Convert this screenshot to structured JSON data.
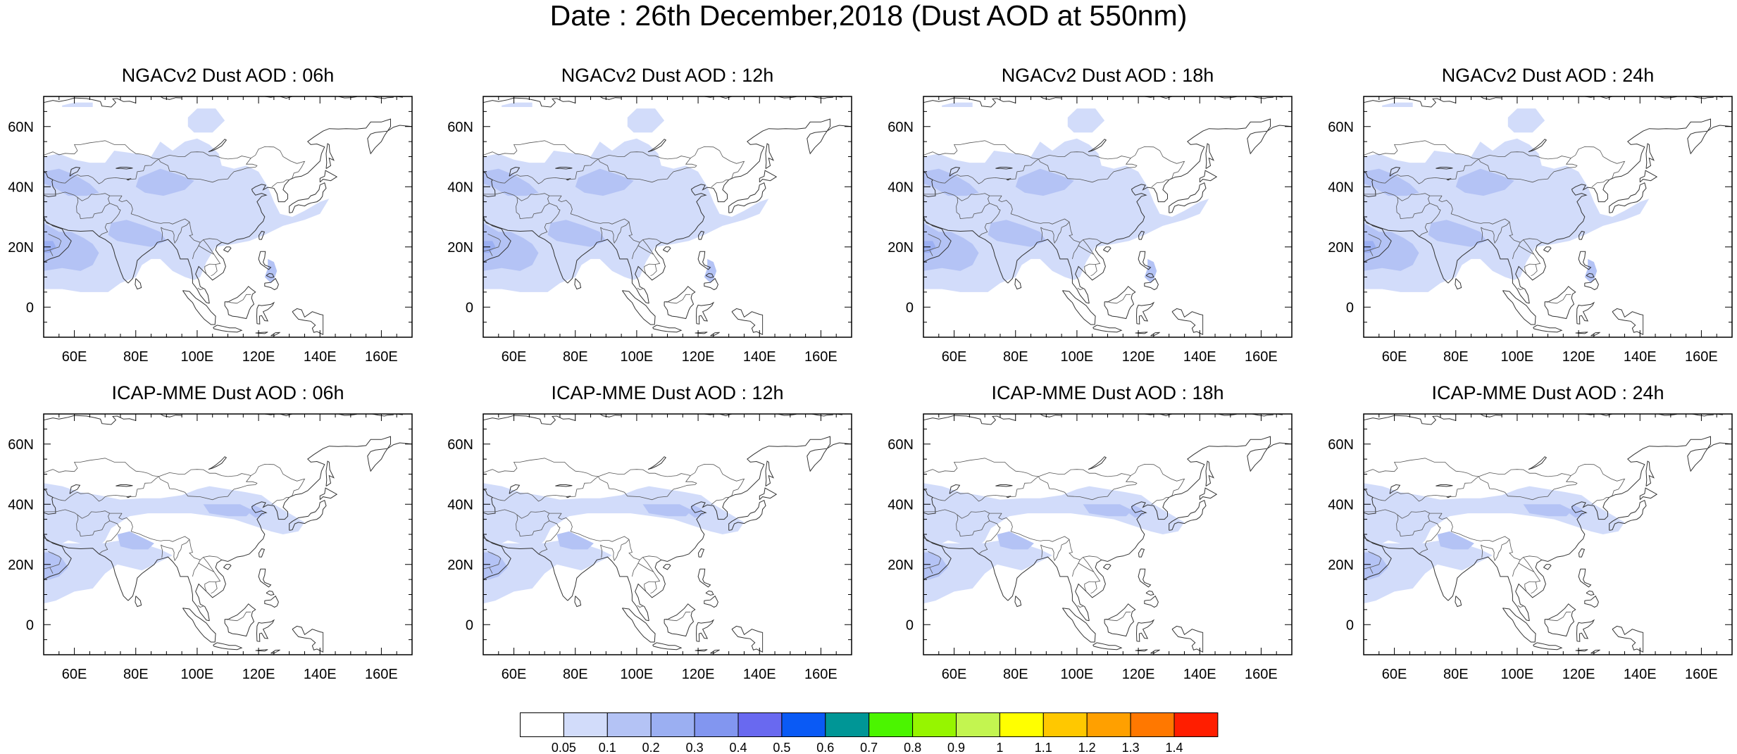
{
  "title": "Date : 26th December,2018 (Dust AOD at 550nm)",
  "axes": {
    "lon_ticks": [
      "60E",
      "80E",
      "100E",
      "120E",
      "140E",
      "160E"
    ],
    "lat_ticks": [
      "60N",
      "40N",
      "20N",
      "0"
    ],
    "lon_range": [
      50,
      170
    ],
    "lat_range": [
      -10,
      70
    ]
  },
  "panels": [
    {
      "title": "NGACv2 Dust AOD : 06h",
      "model": "NGACv2"
    },
    {
      "title": "NGACv2 Dust AOD : 12h",
      "model": "NGACv2"
    },
    {
      "title": "NGACv2 Dust AOD : 18h",
      "model": "NGACv2"
    },
    {
      "title": "NGACv2 Dust AOD : 24h",
      "model": "NGACv2"
    },
    {
      "title": "ICAP-MME Dust AOD : 06h",
      "model": "ICAP-MME"
    },
    {
      "title": "ICAP-MME Dust AOD : 12h",
      "model": "ICAP-MME"
    },
    {
      "title": "ICAP-MME Dust AOD : 18h",
      "model": "ICAP-MME"
    },
    {
      "title": "ICAP-MME Dust AOD : 24h",
      "model": "ICAP-MME"
    }
  ],
  "colorbar": {
    "labels": [
      "0.05",
      "0.1",
      "0.2",
      "0.3",
      "0.4",
      "0.5",
      "0.6",
      "0.7",
      "0.8",
      "0.9",
      "1",
      "1.1",
      "1.2",
      "1.3",
      "1.4"
    ],
    "colors": [
      "#ffffff",
      "#d2dcfa",
      "#b4c3f5",
      "#9baff2",
      "#8296f0",
      "#6969f0",
      "#0a5af5",
      "#009696",
      "#4bf500",
      "#96f500",
      "#c3f550",
      "#ffff00",
      "#ffc800",
      "#ffa000",
      "#ff7800",
      "#ff1e00"
    ]
  }
}
